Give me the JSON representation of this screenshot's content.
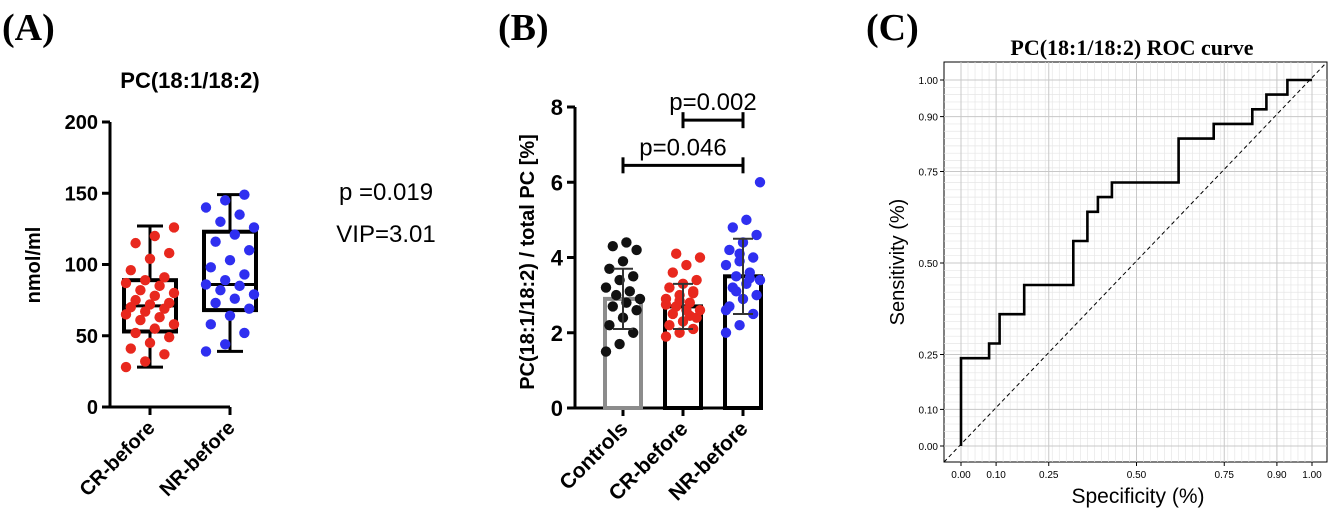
{
  "panels": {
    "a_label": "(A)",
    "b_label": "(B)",
    "c_label": "(C)"
  },
  "chart_data": [
    {
      "type": "box",
      "title": "PC(18:1/18:2)",
      "ylabel": "nmol/ml",
      "ylim": [
        0,
        200
      ],
      "yticks": [
        0,
        50,
        100,
        150,
        200
      ],
      "categories": [
        "CR-before",
        "NR-before"
      ],
      "colors": [
        "#e8281e",
        "#2f2ff0"
      ],
      "boxes": [
        {
          "min": 28,
          "q1": 53,
          "median": 71,
          "q3": 89,
          "max": 127
        },
        {
          "min": 39,
          "q1": 68,
          "median": 86,
          "q3": 123,
          "max": 149
        }
      ],
      "points": [
        [
          28,
          32,
          37,
          41,
          45,
          49,
          52,
          55,
          58,
          61,
          63,
          65,
          67,
          69,
          70,
          72,
          73,
          75,
          78,
          80,
          82,
          85,
          87,
          89,
          91,
          96,
          104,
          108,
          115,
          120,
          126
        ],
        [
          39,
          44,
          52,
          58,
          64,
          69,
          73,
          76,
          79,
          82,
          85,
          86,
          89,
          93,
          98,
          103,
          110,
          116,
          121,
          126,
          130,
          135,
          140,
          145,
          149
        ]
      ],
      "annotations": [
        "p =0.019",
        "VIP=3.01"
      ]
    },
    {
      "type": "bar",
      "title": "",
      "ylabel": "PC(18:1/18:2) / total PC [%]",
      "ylim": [
        0,
        8
      ],
      "yticks": [
        0,
        2,
        4,
        6,
        8
      ],
      "categories": [
        "Controls",
        "CR-before",
        "NR-before"
      ],
      "colors": [
        "#111111",
        "#e8281e",
        "#2f2ff0"
      ],
      "values": [
        2.9,
        2.7,
        3.5
      ],
      "sd": [
        0.8,
        0.6,
        1.0
      ],
      "points": [
        [
          1.5,
          1.7,
          2.0,
          2.2,
          2.4,
          2.6,
          2.7,
          2.8,
          2.9,
          3.0,
          3.1,
          3.2,
          3.4,
          3.5,
          3.7,
          3.9,
          4.2,
          4.3,
          4.4
        ],
        [
          1.9,
          2.0,
          2.1,
          2.2,
          2.3,
          2.4,
          2.5,
          2.6,
          2.6,
          2.7,
          2.8,
          2.9,
          3.0,
          3.1,
          3.2,
          3.3,
          3.4,
          3.6,
          3.8,
          4.0,
          4.1,
          2.45,
          2.75,
          2.85,
          3.05
        ],
        [
          2.0,
          2.2,
          2.5,
          2.7,
          2.9,
          3.0,
          3.2,
          3.3,
          3.4,
          3.5,
          3.6,
          3.8,
          3.9,
          4.0,
          4.2,
          4.4,
          4.6,
          4.8,
          5.0,
          6.0,
          3.1,
          3.45,
          2.6,
          4.1
        ]
      ],
      "brackets": [
        {
          "from": "CR-before",
          "to": "NR-before",
          "y": 7.65,
          "label": "p=0.002"
        },
        {
          "from": "Controls",
          "to": "NR-before",
          "y": 6.45,
          "label": "p=0.046"
        }
      ]
    },
    {
      "type": "line",
      "title": "PC(18:1/18:2) ROC curve",
      "xlabel": "Specificity (%)",
      "ylabel": "Sensitivity (%)",
      "xlim": [
        0,
        1
      ],
      "ylim": [
        0,
        1
      ],
      "xtick_labels": [
        "0.00",
        "0.10",
        "0.25",
        "0.50",
        "0.75",
        "0.90",
        "1.00"
      ],
      "ytick_labels": [
        "0.00",
        "0.10",
        "0.25",
        "0.50",
        "0.75",
        "0.90",
        "1.00"
      ],
      "grid": true,
      "series": [
        {
          "name": "",
          "x": [
            0.0,
            0.0,
            0.08,
            0.08,
            0.11,
            0.11,
            0.18,
            0.18,
            0.32,
            0.32,
            0.36,
            0.36,
            0.39,
            0.39,
            0.43,
            0.43,
            0.62,
            0.62,
            0.72,
            0.72,
            0.83,
            0.83,
            0.87,
            0.87,
            0.93,
            0.93,
            1.0
          ],
          "y": [
            0.0,
            0.24,
            0.24,
            0.28,
            0.28,
            0.36,
            0.36,
            0.44,
            0.44,
            0.56,
            0.56,
            0.64,
            0.64,
            0.68,
            0.68,
            0.72,
            0.72,
            0.84,
            0.84,
            0.88,
            0.88,
            0.92,
            0.92,
            0.96,
            0.96,
            1.0,
            1.0
          ]
        }
      ],
      "reference_line": "diagonal-dashed"
    }
  ]
}
